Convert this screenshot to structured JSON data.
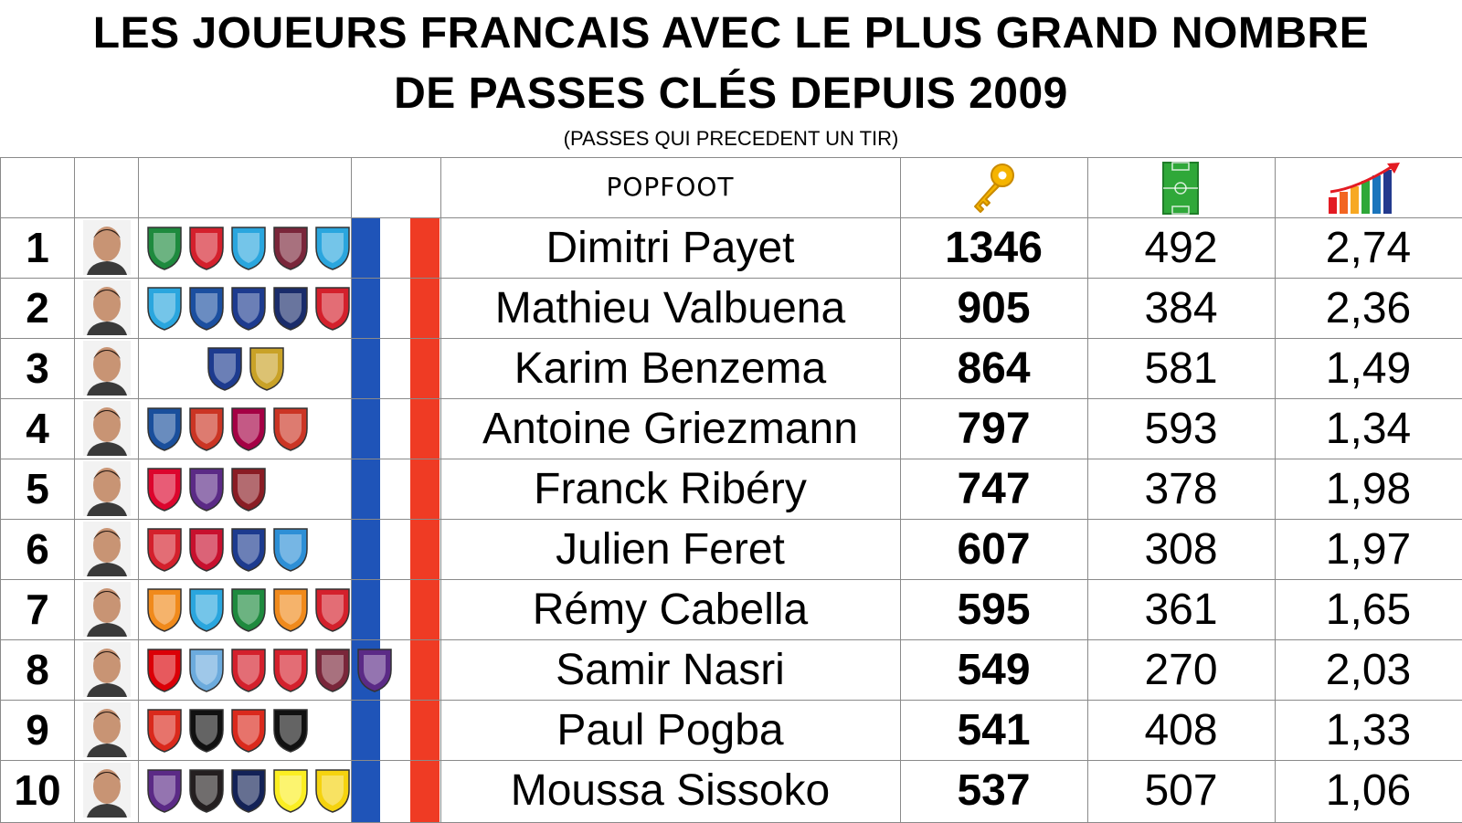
{
  "title": {
    "line1": "LES JOUEURS FRANCAIS AVEC LE PLUS GRAND NOMBRE",
    "line2": "DE PASSES CLÉS DEPUIS 2009",
    "subtitle": "(PASSES QUI PRECEDENT UN TIR)"
  },
  "header": {
    "brand": "POPFOOT",
    "columns": [
      {
        "icon": "key-icon",
        "color": "#f5b400"
      },
      {
        "icon": "football-pitch-icon",
        "color": "#2fa839"
      },
      {
        "icon": "bar-chart-up-icon",
        "color": "#e31b23"
      }
    ]
  },
  "flag_colors": {
    "blue": "#1f54b8",
    "red": "#ef3b24"
  },
  "rows": [
    {
      "rank": "1",
      "name": "Dimitri Payet",
      "key_passes": "1346",
      "matches": "492",
      "ratio": "2,74",
      "clubs": [
        {
          "icon": "saint-etienne-crest",
          "color": "#1e8a3e"
        },
        {
          "icon": "losc-crest",
          "color": "#d4202c"
        },
        {
          "icon": "marseille-crest",
          "color": "#2aa6de"
        },
        {
          "icon": "west-ham-crest",
          "color": "#7a263a"
        },
        {
          "icon": "marseille-crest",
          "color": "#2aa6de"
        }
      ]
    },
    {
      "rank": "2",
      "name": "Mathieu Valbuena",
      "key_passes": "905",
      "matches": "384",
      "ratio": "2,36",
      "clubs": [
        {
          "icon": "marseille-crest",
          "color": "#2aa6de"
        },
        {
          "icon": "dynamo-moscow-crest",
          "color": "#1b4fa0"
        },
        {
          "icon": "lyon-crest",
          "color": "#1d3b8f"
        },
        {
          "icon": "fenerbahce-crest",
          "color": "#1a2c6b"
        },
        {
          "icon": "olympiacos-crest",
          "color": "#d4202c"
        }
      ]
    },
    {
      "rank": "3",
      "name": "Karim Benzema",
      "key_passes": "864",
      "matches": "581",
      "ratio": "1,49",
      "clubs": [
        {
          "icon": "lyon-crest",
          "color": "#1d3b8f"
        },
        {
          "icon": "real-madrid-crest",
          "color": "#c9a227"
        }
      ]
    },
    {
      "rank": "4",
      "name": "Antoine Griezmann",
      "key_passes": "797",
      "matches": "593",
      "ratio": "1,34",
      "clubs": [
        {
          "icon": "real-sociedad-crest",
          "color": "#1a4f9c"
        },
        {
          "icon": "atletico-madrid-crest",
          "color": "#cb3524"
        },
        {
          "icon": "barcelona-crest",
          "color": "#a50044"
        },
        {
          "icon": "atletico-madrid-crest",
          "color": "#cb3524"
        }
      ]
    },
    {
      "rank": "5",
      "name": "Franck Ribéry",
      "key_passes": "747",
      "matches": "378",
      "ratio": "1,98",
      "clubs": [
        {
          "icon": "bayern-munich-crest",
          "color": "#dc052d"
        },
        {
          "icon": "fiorentina-crest",
          "color": "#5b2a86"
        },
        {
          "icon": "salernitana-crest",
          "color": "#8a1c24"
        }
      ]
    },
    {
      "rank": "6",
      "name": "Julien Feret",
      "key_passes": "607",
      "matches": "308",
      "ratio": "1,97",
      "clubs": [
        {
          "icon": "nancy-crest",
          "color": "#d4202c"
        },
        {
          "icon": "rennes-crest",
          "color": "#c8102e"
        },
        {
          "icon": "caen-crest",
          "color": "#1d3b8f"
        },
        {
          "icon": "auxerre-crest",
          "color": "#2d8fd6"
        }
      ]
    },
    {
      "rank": "7",
      "name": "Rémy Cabella",
      "key_passes": "595",
      "matches": "361",
      "ratio": "1,65",
      "clubs": [
        {
          "icon": "montpellier-crest",
          "color": "#f08a1c"
        },
        {
          "icon": "marseille-crest",
          "color": "#2aa6de"
        },
        {
          "icon": "saint-etienne-crest",
          "color": "#1e8a3e"
        },
        {
          "icon": "montpellier-crest",
          "color": "#f08a1c"
        },
        {
          "icon": "losc-crest",
          "color": "#d4202c"
        }
      ]
    },
    {
      "rank": "8",
      "name": "Samir Nasri",
      "key_passes": "549",
      "matches": "270",
      "ratio": "2,03",
      "clubs": [
        {
          "icon": "arsenal-crest",
          "color": "#db0007"
        },
        {
          "icon": "manchester-city-crest",
          "color": "#6cabdd"
        },
        {
          "icon": "sevilla-crest",
          "color": "#d4202c"
        },
        {
          "icon": "antalyaspor-crest",
          "color": "#d4202c"
        },
        {
          "icon": "west-ham-crest",
          "color": "#7a263a"
        },
        {
          "icon": "anderlecht-crest",
          "color": "#5b2a86"
        }
      ]
    },
    {
      "rank": "9",
      "name": "Paul Pogba",
      "key_passes": "541",
      "matches": "408",
      "ratio": "1,33",
      "clubs": [
        {
          "icon": "manchester-united-crest",
          "color": "#da291c"
        },
        {
          "icon": "juventus-crest",
          "color": "#111111"
        },
        {
          "icon": "manchester-united-crest",
          "color": "#da291c"
        },
        {
          "icon": "juventus-crest",
          "color": "#111111"
        }
      ]
    },
    {
      "rank": "10",
      "name": "Moussa Sissoko",
      "key_passes": "537",
      "matches": "507",
      "ratio": "1,06",
      "clubs": [
        {
          "icon": "toulouse-crest",
          "color": "#5b2a86"
        },
        {
          "icon": "newcastle-crest",
          "color": "#241f20"
        },
        {
          "icon": "tottenham-crest",
          "color": "#132257"
        },
        {
          "icon": "watford-crest",
          "color": "#fbee23"
        },
        {
          "icon": "nantes-crest",
          "color": "#f5d30f"
        }
      ]
    }
  ]
}
